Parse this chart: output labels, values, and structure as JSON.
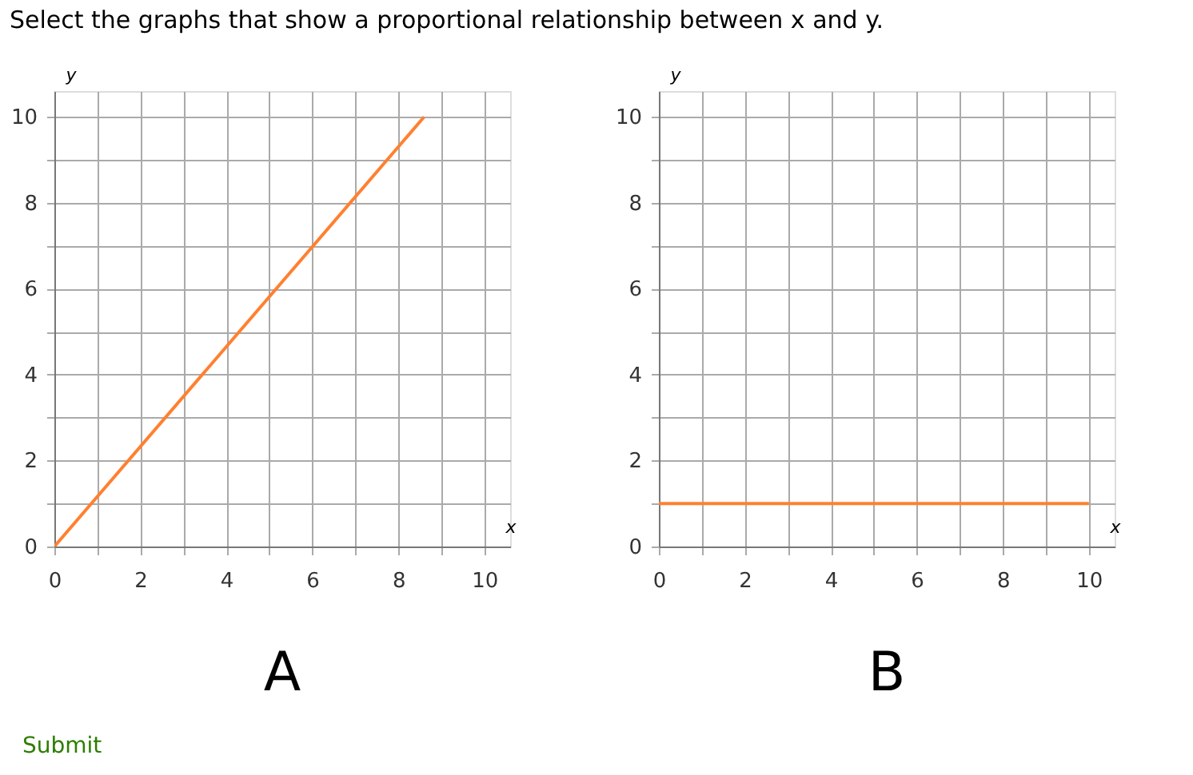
{
  "chart_data": [
    {
      "type": "line",
      "title": "Select the graphs that show a proportional relationship between x and y.",
      "xlabel": "x",
      "ylabel": "y",
      "x": [
        0,
        8.6
      ],
      "series": [
        {
          "color": "#ff8030",
          "values": [
            0,
            10
          ]
        }
      ],
      "xlim": [
        0,
        10.6
      ],
      "ylim": [
        0,
        10.6
      ],
      "xticks": [
        0,
        {
          "value": 1,
          "label": null
        },
        2,
        {
          "value": 3,
          "label": null
        },
        4,
        {
          "value": 5,
          "label": null
        },
        6,
        {
          "value": 7,
          "label": null
        },
        8,
        {
          "value": 9,
          "label": null
        },
        10
      ],
      "yticks": [
        0,
        {
          "value": 1,
          "label": null
        },
        2,
        {
          "value": 3,
          "label": null
        },
        4,
        {
          "value": 5,
          "label": null
        },
        6,
        {
          "value": 7,
          "label": null
        },
        8,
        {
          "value": 9,
          "label": null
        },
        10
      ],
      "grid": true,
      "annotations": [
        "A",
        "Submit"
      ]
    },
    {
      "type": "line",
      "xlabel": "x",
      "ylabel": "y",
      "x": [
        0,
        10
      ],
      "series": [
        {
          "color": "#ff8030",
          "values": [
            1,
            1
          ]
        }
      ],
      "xlim": [
        0,
        10.6
      ],
      "ylim": [
        0,
        10.6
      ],
      "xticks": [
        0,
        {
          "value": 1,
          "label": null
        },
        2,
        {
          "value": 3,
          "label": null
        },
        4,
        {
          "value": 5,
          "label": null
        },
        6,
        {
          "value": 7,
          "label": null
        },
        8,
        {
          "value": 9,
          "label": null
        },
        10
      ],
      "yticks": [
        0,
        {
          "value": 1,
          "label": null
        },
        2,
        {
          "value": 3,
          "label": null
        },
        4,
        {
          "value": 5,
          "label": null
        },
        6,
        {
          "value": 7,
          "label": null
        },
        8,
        {
          "value": 9,
          "label": null
        },
        10
      ],
      "grid": true,
      "annotations": [
        "B"
      ]
    }
  ]
}
